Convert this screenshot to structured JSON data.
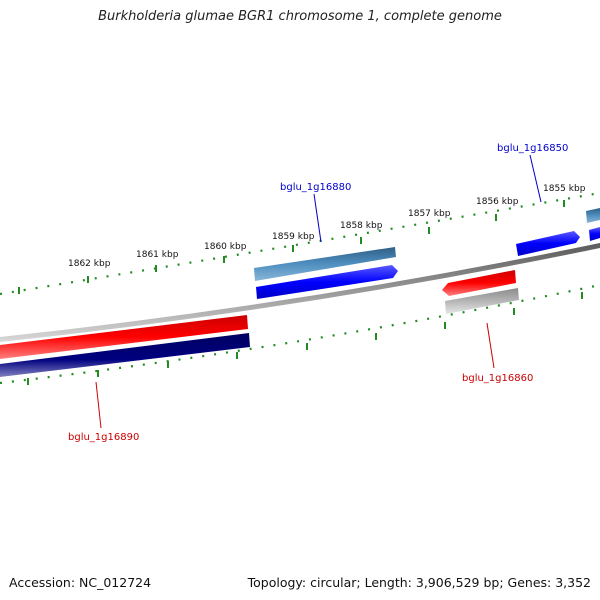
{
  "title": "Burkholderia glumae BGR1 chromosome 1, complete genome",
  "footer": {
    "accession": "Accession: NC_012724",
    "summary": "Topology: circular; Length: 3,906,529 bp; Genes: 3,352"
  },
  "ticks": [
    "1862 kbp",
    "1861 kbp",
    "1860 kbp",
    "1859 kbp",
    "1858 kbp",
    "1857 kbp",
    "1856 kbp",
    "1855 kbp"
  ],
  "genes": {
    "bglu_1g16850": "bglu_1g16850",
    "bglu_1g16880": "bglu_1g16880",
    "bglu_1g16860": "bglu_1g16860",
    "bglu_1g16890": "bglu_1g16890"
  },
  "colors": {
    "forward_cds": "#0000ff",
    "forward_gene": "#4682b4",
    "reverse_cds": "#ff0000",
    "reverse_gene_dark": "#000080",
    "reverse_gene_grey": "#b0b0b0",
    "backbone": "#808080",
    "ticks": "#228b22",
    "label_forward": "#0000cc",
    "label_reverse": "#cc0000"
  }
}
